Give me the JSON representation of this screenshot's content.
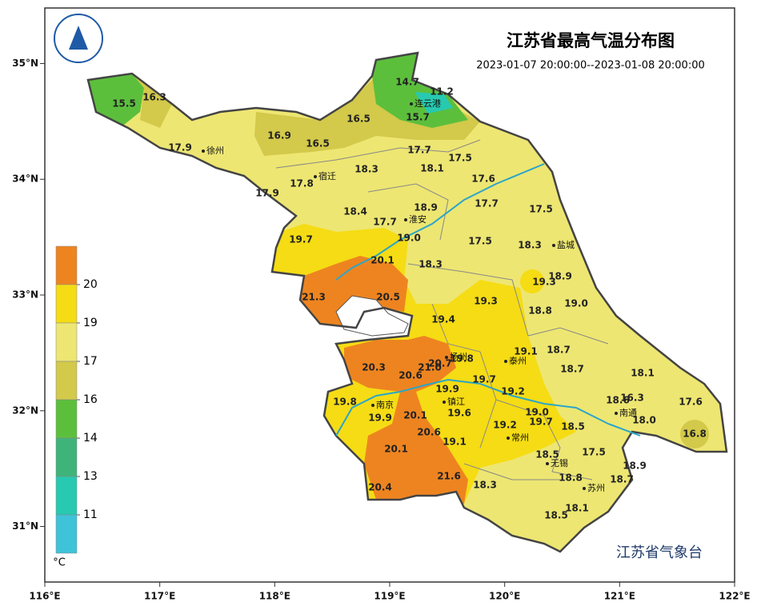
{
  "title": "江苏省最高气温分布图",
  "subtitle": "2023-01-07 20:00:00--2023-01-08 20:00:00",
  "source": "江苏省气象台",
  "axes": {
    "xlim": [
      116,
      122
    ],
    "ylim": [
      30.52,
      35.48
    ],
    "xticks": [
      {
        "value": 116,
        "label": "116°E"
      },
      {
        "value": 117,
        "label": "117°E"
      },
      {
        "value": 118,
        "label": "118°E"
      },
      {
        "value": 119,
        "label": "119°E"
      },
      {
        "value": 120,
        "label": "120°E"
      },
      {
        "value": 121,
        "label": "121°E"
      },
      {
        "value": 122,
        "label": "122°E"
      }
    ],
    "yticks": [
      {
        "value": 31,
        "label": "31°N"
      },
      {
        "value": 32,
        "label": "32°N"
      },
      {
        "value": 33,
        "label": "33°N"
      },
      {
        "value": 34,
        "label": "34°N"
      },
      {
        "value": 35,
        "label": "35°N"
      }
    ]
  },
  "legend": {
    "unit": "°C",
    "colors": [
      "#ee8420",
      "#f5dc14",
      "#ede672",
      "#d3c94a",
      "#5cbf3c",
      "#3fb47a",
      "#27c9b0",
      "#3fc3d8"
    ],
    "ticks": [
      20,
      19,
      17,
      16,
      14,
      13,
      11
    ]
  },
  "cities": [
    "徐州",
    "宿迁",
    "连云港",
    "淮安",
    "盐城",
    "扬州",
    "泰州",
    "南京",
    "镇江",
    "常州",
    "南通",
    "无锡",
    "苏州"
  ],
  "stations": {
    "values": [
      15.5,
      16.3,
      17.9,
      16.9,
      16.5,
      16.5,
      14.7,
      11.2,
      15.7,
      17.7,
      17.5,
      18.1,
      18.3,
      17.8,
      17.9,
      17.6,
      18.4,
      17.7,
      18.9,
      17.7,
      17.5,
      19.0,
      19.7,
      17.5,
      18.3,
      20.1,
      18.3,
      18.9,
      19.3,
      21.3,
      20.5,
      19.3,
      18.8,
      19.0,
      19.4,
      19.1,
      18.7,
      19.8,
      20.7,
      21.0,
      20.3,
      20.6,
      18.7,
      18.1,
      19.7,
      19.9,
      19.2,
      19.8,
      18.6,
      16.3,
      17.6,
      20.1,
      19.6,
      19.0,
      19.9,
      19.2,
      19.7,
      18.0,
      18.5,
      20.6,
      16.8,
      19.1,
      20.1,
      18.5,
      17.5,
      18.9,
      21.6,
      18.8,
      18.7,
      20.4,
      18.3,
      18.1,
      18.5
    ],
    "value_labels": [
      "15.5",
      "16.3",
      "17.9",
      "16.9",
      "16.5",
      "16.5",
      "14.7",
      "11.2",
      "15.7",
      "17.7",
      "17.5",
      "18.1",
      "18.3",
      "17.8",
      "17.9",
      "17.6",
      "18.4",
      "17.7",
      "18.9",
      "17.7",
      "17.5",
      "19.0",
      "19.7",
      "17.5",
      "18.3",
      "20.1",
      "18.3",
      "18.9",
      "19.3",
      "21.3",
      "20.5",
      "19.3",
      "18.8",
      "19.0",
      "19.4",
      "19.1",
      "18.7",
      "19.8",
      "20.7",
      "21.0",
      "20.3",
      "20.6",
      "18.7",
      "18.1",
      "19.7",
      "19.9",
      "19.2",
      "19.8",
      "18.6",
      "16.3",
      "17.6",
      "20.1",
      "19.6",
      "19.0",
      "19.9",
      "19.2",
      "19.7",
      "18.0",
      "18.5",
      "20.6",
      "16.8",
      "19.1",
      "20.1",
      "18.5",
      "17.5",
      "18.9",
      "21.6",
      "18.8",
      "18.7",
      "20.4",
      "18.3",
      "18.1",
      "18.5"
    ]
  }
}
